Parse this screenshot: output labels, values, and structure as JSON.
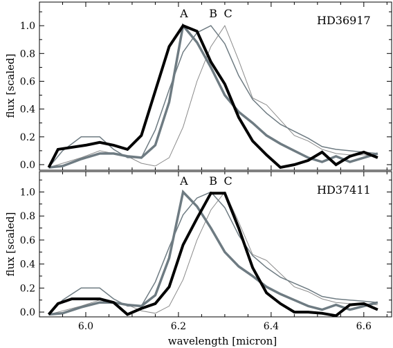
{
  "chart_data": [
    {
      "type": "line",
      "title": "HD36917",
      "ylabel": "flux [scaled]",
      "xlabel": "",
      "xlim": [
        5.9,
        6.66
      ],
      "ylim": [
        -0.04,
        1.17
      ],
      "xticks": [
        6.0,
        6.2,
        6.4,
        6.6
      ],
      "xtick_labels": [
        "",
        "",
        "",
        ""
      ],
      "yticks": [
        0.0,
        0.2,
        0.4,
        0.6,
        0.8,
        1.0
      ],
      "ytick_labels": [
        "0.0",
        "0.2",
        "0.4",
        "0.6",
        "0.8",
        "1.0"
      ],
      "annotations": [
        {
          "text": "A",
          "x": 6.212,
          "y": 1.06
        },
        {
          "text": "B",
          "x": 6.275,
          "y": 1.06
        },
        {
          "text": "C",
          "x": 6.307,
          "y": 1.06
        }
      ],
      "series": [
        {
          "color": "#8a8a8a",
          "width": 1,
          "x": [
            5.92,
            5.95,
            5.99,
            6.03,
            6.06,
            6.09,
            6.12,
            6.15,
            6.18,
            6.21,
            6.24,
            6.27,
            6.3,
            6.33,
            6.36,
            6.39,
            6.42,
            6.45,
            6.48,
            6.51,
            6.54,
            6.57,
            6.6,
            6.63
          ],
          "values": [
            -0.02,
            0.01,
            0.05,
            0.1,
            0.08,
            0.06,
            0.01,
            -0.01,
            0.05,
            0.27,
            0.6,
            0.85,
            1.0,
            0.75,
            0.48,
            0.43,
            0.32,
            0.21,
            0.17,
            0.11,
            0.08,
            0.07,
            0.07,
            0.06
          ]
        },
        {
          "color": "#6e7b82",
          "width": 1.5,
          "x": [
            5.92,
            5.95,
            5.99,
            6.03,
            6.06,
            6.09,
            6.12,
            6.15,
            6.18,
            6.21,
            6.24,
            6.27,
            6.3,
            6.33,
            6.36,
            6.39,
            6.42,
            6.45,
            6.48,
            6.51,
            6.54,
            6.57,
            6.6,
            6.63
          ],
          "values": [
            -0.02,
            0.1,
            0.2,
            0.2,
            0.11,
            0.05,
            0.05,
            0.25,
            0.54,
            0.81,
            0.95,
            1.0,
            0.87,
            0.64,
            0.47,
            0.37,
            0.29,
            0.24,
            0.19,
            0.13,
            0.11,
            0.1,
            0.09,
            0.08
          ]
        },
        {
          "color": "#6e7b82",
          "width": 3.5,
          "x": [
            5.92,
            5.95,
            5.99,
            6.03,
            6.06,
            6.09,
            6.12,
            6.15,
            6.18,
            6.21,
            6.24,
            6.27,
            6.3,
            6.33,
            6.36,
            6.39,
            6.42,
            6.45,
            6.48,
            6.51,
            6.54,
            6.57,
            6.6,
            6.63
          ],
          "values": [
            -0.02,
            -0.01,
            0.04,
            0.08,
            0.08,
            0.06,
            0.05,
            0.14,
            0.45,
            1.0,
            0.88,
            0.7,
            0.5,
            0.38,
            0.3,
            0.21,
            0.15,
            0.1,
            0.05,
            0.02,
            0.06,
            0.02,
            0.05,
            0.08
          ]
        },
        {
          "color": "#000000",
          "width": 4,
          "x": [
            5.92,
            5.94,
            6.0,
            6.03,
            6.06,
            6.09,
            6.12,
            6.15,
            6.18,
            6.21,
            6.24,
            6.27,
            6.3,
            6.33,
            6.36,
            6.39,
            6.42,
            6.45,
            6.48,
            6.51,
            6.54,
            6.57,
            6.6,
            6.63
          ],
          "values": [
            -0.02,
            0.11,
            0.14,
            0.16,
            0.14,
            0.11,
            0.21,
            0.53,
            0.85,
            1.0,
            0.96,
            0.74,
            0.58,
            0.34,
            0.17,
            0.07,
            -0.02,
            0.0,
            0.03,
            0.09,
            0.0,
            0.06,
            0.09,
            0.05
          ]
        }
      ]
    },
    {
      "type": "line",
      "title": "HD37411",
      "ylabel": "flux [scaled]",
      "xlabel": "wavelength [micron]",
      "xlim": [
        5.9,
        6.66
      ],
      "ylim": [
        -0.04,
        1.17
      ],
      "xticks": [
        6.0,
        6.2,
        6.4,
        6.6
      ],
      "xtick_labels": [
        "6.0",
        "6.2",
        "6.4",
        "6.6"
      ],
      "yticks": [
        0.0,
        0.2,
        0.4,
        0.6,
        0.8,
        1.0
      ],
      "ytick_labels": [
        "0.0",
        "0.2",
        "0.4",
        "0.6",
        "0.8",
        "1.0"
      ],
      "annotations": [
        {
          "text": "A",
          "x": 6.212,
          "y": 1.06
        },
        {
          "text": "B",
          "x": 6.275,
          "y": 1.06
        },
        {
          "text": "C",
          "x": 6.307,
          "y": 1.06
        }
      ],
      "series": [
        {
          "color": "#8a8a8a",
          "width": 1,
          "x": [
            5.92,
            5.95,
            5.99,
            6.03,
            6.06,
            6.09,
            6.12,
            6.15,
            6.18,
            6.21,
            6.24,
            6.27,
            6.3,
            6.33,
            6.36,
            6.39,
            6.42,
            6.45,
            6.48,
            6.51,
            6.54,
            6.57,
            6.6,
            6.63
          ],
          "values": [
            -0.02,
            0.01,
            0.05,
            0.1,
            0.08,
            0.06,
            0.01,
            -0.01,
            0.05,
            0.27,
            0.6,
            0.85,
            1.0,
            0.75,
            0.48,
            0.43,
            0.32,
            0.21,
            0.17,
            0.11,
            0.08,
            0.07,
            0.07,
            0.06
          ]
        },
        {
          "color": "#6e7b82",
          "width": 1.5,
          "x": [
            5.92,
            5.95,
            5.99,
            6.03,
            6.06,
            6.09,
            6.12,
            6.15,
            6.18,
            6.21,
            6.24,
            6.27,
            6.3,
            6.33,
            6.36,
            6.39,
            6.42,
            6.45,
            6.48,
            6.51,
            6.54,
            6.57,
            6.6,
            6.63
          ],
          "values": [
            -0.02,
            0.1,
            0.2,
            0.2,
            0.11,
            0.05,
            0.05,
            0.25,
            0.54,
            0.81,
            0.95,
            1.0,
            0.87,
            0.64,
            0.47,
            0.37,
            0.29,
            0.24,
            0.19,
            0.13,
            0.11,
            0.1,
            0.09,
            0.08
          ]
        },
        {
          "color": "#6e7b82",
          "width": 3.5,
          "x": [
            5.92,
            5.95,
            5.99,
            6.03,
            6.06,
            6.09,
            6.12,
            6.15,
            6.18,
            6.21,
            6.24,
            6.27,
            6.3,
            6.33,
            6.36,
            6.39,
            6.42,
            6.45,
            6.48,
            6.51,
            6.54,
            6.57,
            6.6,
            6.63
          ],
          "values": [
            -0.02,
            -0.01,
            0.04,
            0.08,
            0.08,
            0.06,
            0.05,
            0.14,
            0.45,
            1.0,
            0.88,
            0.7,
            0.5,
            0.38,
            0.3,
            0.21,
            0.15,
            0.1,
            0.05,
            0.02,
            0.06,
            0.02,
            0.05,
            0.08
          ]
        },
        {
          "color": "#000000",
          "width": 4,
          "x": [
            5.92,
            5.94,
            5.97,
            6.0,
            6.03,
            6.06,
            6.09,
            6.12,
            6.15,
            6.18,
            6.21,
            6.24,
            6.27,
            6.3,
            6.33,
            6.36,
            6.39,
            6.42,
            6.45,
            6.48,
            6.51,
            6.54,
            6.57,
            6.6,
            6.63
          ],
          "values": [
            -0.02,
            0.07,
            0.11,
            0.11,
            0.11,
            0.08,
            -0.02,
            0.03,
            0.07,
            0.21,
            0.56,
            0.78,
            0.99,
            0.99,
            0.7,
            0.37,
            0.16,
            0.07,
            0.0,
            0.0,
            -0.01,
            -0.03,
            0.06,
            0.07,
            0.02
          ]
        }
      ]
    }
  ]
}
